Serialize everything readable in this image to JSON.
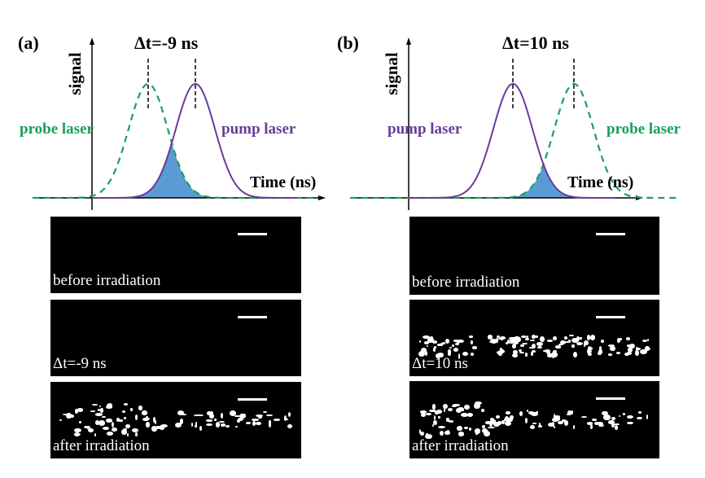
{
  "colors": {
    "probe": "#1aa05a",
    "pump": "#6a3a9a",
    "overlap": "#5b9bd5"
  },
  "panels": [
    {
      "label": "(a)",
      "delta": "Δt=-9 ns",
      "ylabel": "signal",
      "xlabel": "Time (ns)",
      "probe_label": "probe laser",
      "pump_label": "pump laser",
      "images": [
        "before irradiation",
        "Δt=-9 ns",
        "after irradiation"
      ]
    },
    {
      "label": "(b)",
      "delta": "Δt=10 ns",
      "ylabel": "signal",
      "xlabel": "Time (ns)",
      "probe_label": "probe laser",
      "pump_label": "pump laser",
      "images": [
        "before irradiation",
        "Δt=10 ns",
        "after irradiation"
      ]
    }
  ]
}
